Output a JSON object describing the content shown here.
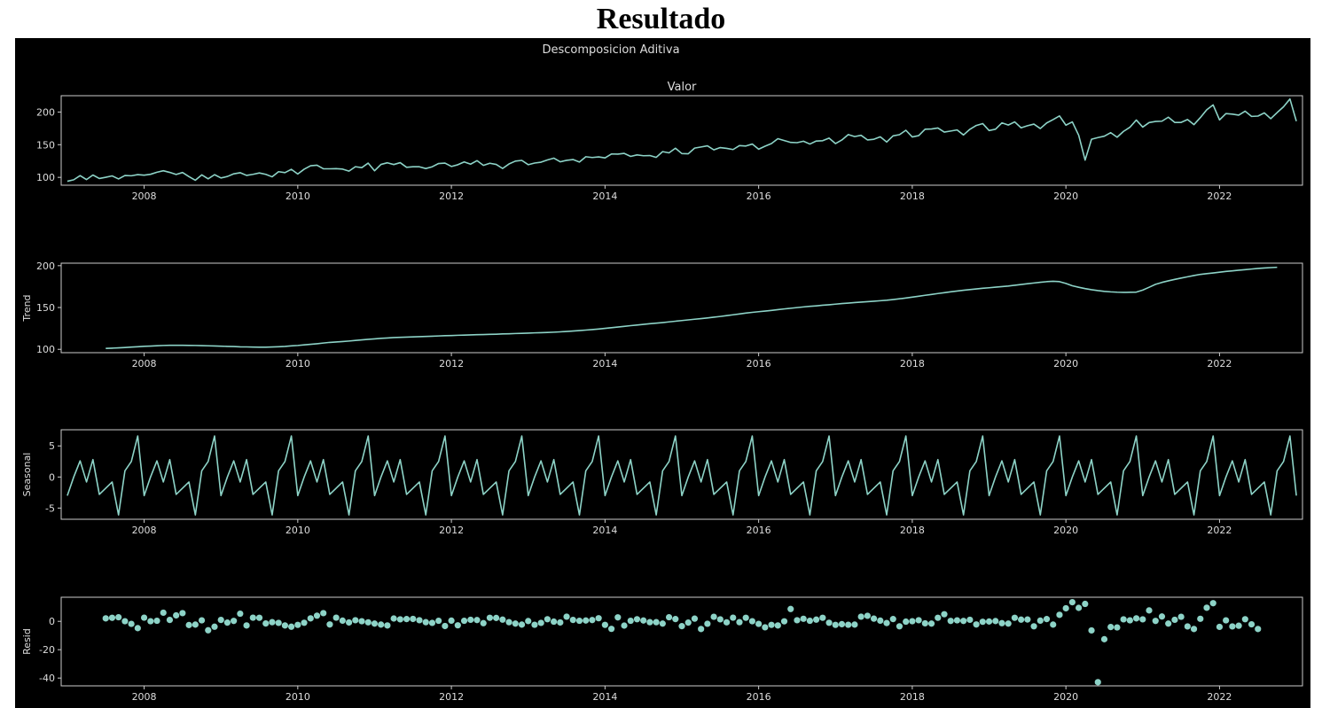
{
  "page": {
    "title": "Resultado"
  },
  "figure": {
    "suptitle": "Descomposicion Aditiva"
  },
  "colors": {
    "background": "#000000",
    "line": "#8dd3c7",
    "axes": "#cccccc",
    "text": "#dddddd"
  },
  "chart_data": [
    {
      "type": "line",
      "title": "Valor",
      "ylabel": "",
      "xlim": [
        2006.92,
        2023.08
      ],
      "ylim": [
        88,
        225
      ],
      "yticks": [
        100,
        150,
        200
      ],
      "xticks": [
        "2008",
        "2010",
        "2012",
        "2014",
        "2016",
        "2018",
        "2020",
        "2022"
      ],
      "x_start": "2007-01",
      "x_step_months": 1,
      "values": [
        94.0,
        96.3,
        102.7,
        96.6,
        103.6,
        98.3,
        100.1,
        102.2,
        97.6,
        102.9,
        102.4,
        104.2,
        103.3,
        104.7,
        107.8,
        110.1,
        107.6,
        104.4,
        107.4,
        101.2,
        95.6,
        103.8,
        97.8,
        104.1,
        99.1,
        101.3,
        105.4,
        107.1,
        103.0,
        104.6,
        106.7,
        104.6,
        100.8,
        108.7,
        107.2,
        112.3,
        105.1,
        112.5,
        117.8,
        118.6,
        113.2,
        113.1,
        113.3,
        112.6,
        109.5,
        116.3,
        114.9,
        121.8,
        110.1,
        119.8,
        122.3,
        119.6,
        122.5,
        115.4,
        116.2,
        116.2,
        113.5,
        116.2,
        121.2,
        121.8,
        116.7,
        119.3,
        123.6,
        120.2,
        125.6,
        118.4,
        121.6,
        119.8,
        113.6,
        120.5,
        124.9,
        126.0,
        119.4,
        121.9,
        123.2,
        126.6,
        129.4,
        123.8,
        126.1,
        127.3,
        123.5,
        131.6,
        130.4,
        131.3,
        129.8,
        135.8,
        135.6,
        136.7,
        132.1,
        134.4,
        133.1,
        133.4,
        130.6,
        139.4,
        137.5,
        144.6,
        136.4,
        136.1,
        144.8,
        146.5,
        148.3,
        142.1,
        145.6,
        144.4,
        142.6,
        148.6,
        148.0,
        151.0,
        143.1,
        147.7,
        151.8,
        159.2,
        156.3,
        153.5,
        153.1,
        155.3,
        151.0,
        155.6,
        156.1,
        160.1,
        151.7,
        157.2,
        165.5,
        162.4,
        164.4,
        157.3,
        158.3,
        162.1,
        154.1,
        163.5,
        165.3,
        172.1,
        161.8,
        163.9,
        173.7,
        174.0,
        175.6,
        169.3,
        170.9,
        172.6,
        164.9,
        173.6,
        179.4,
        182.3,
        171.7,
        173.7,
        183.4,
        180.1,
        184.9,
        175.8,
        179.0,
        181.5,
        174.7,
        183.3,
        188.5,
        194.1,
        179.9,
        184.9,
        164.4,
        126.4,
        158.4,
        160.9,
        163.0,
        168.4,
        161.4,
        170.4,
        176.7,
        187.8,
        176.9,
        183.9,
        185.6,
        186.0,
        192.1,
        184.1,
        184.1,
        188.5,
        180.7,
        191.5,
        203.4,
        210.9,
        188.0,
        197.6,
        196.8,
        195.3,
        201.3,
        193.3,
        193.8,
        198.7,
        189.8,
        199.2,
        208.0,
        220.0,
        186.0
      ]
    },
    {
      "type": "line",
      "title": "",
      "ylabel": "Trend",
      "xlim": [
        2006.92,
        2023.08
      ],
      "ylim": [
        96,
        203
      ],
      "yticks": [
        100,
        150,
        200
      ],
      "xticks": [
        "2008",
        "2010",
        "2012",
        "2014",
        "2016",
        "2018",
        "2020",
        "2022"
      ],
      "x_start": "2007-07",
      "x_step_months": 1,
      "values": [
        101.1,
        101.4,
        101.8,
        102.2,
        102.7,
        103.1,
        103.6,
        103.9,
        104.3,
        104.6,
        104.8,
        104.8,
        104.8,
        104.7,
        104.6,
        104.4,
        104.2,
        104.0,
        103.8,
        103.5,
        103.3,
        103.0,
        102.9,
        102.7,
        102.6,
        102.6,
        102.8,
        103.1,
        103.5,
        104.1,
        104.6,
        105.3,
        106.0,
        106.7,
        107.5,
        108.3,
        108.8,
        109.3,
        109.9,
        110.6,
        111.3,
        112.0,
        112.5,
        113.1,
        113.6,
        114.1,
        114.3,
        114.6,
        114.9,
        115.1,
        115.4,
        115.7,
        116.0,
        116.3,
        116.5,
        116.8,
        117.0,
        117.3,
        117.5,
        117.7,
        117.9,
        118.1,
        118.4,
        118.6,
        118.9,
        119.1,
        119.4,
        119.7,
        119.9,
        120.2,
        120.5,
        120.9,
        121.4,
        121.9,
        122.4,
        123.0,
        123.6,
        124.3,
        125.1,
        125.9,
        126.7,
        127.5,
        128.3,
        129.0,
        129.8,
        130.6,
        131.3,
        132.0,
        132.8,
        133.6,
        134.4,
        135.2,
        136.0,
        136.7,
        137.5,
        138.4,
        139.3,
        140.3,
        141.3,
        142.3,
        143.3,
        144.2,
        145.0,
        145.7,
        146.5,
        147.4,
        148.3,
        149.1,
        149.9,
        150.7,
        151.4,
        152.0,
        152.7,
        153.3,
        154.0,
        154.7,
        155.3,
        155.9,
        156.5,
        157.0,
        157.5,
        158.1,
        158.7,
        159.5,
        160.4,
        161.4,
        162.4,
        163.5,
        164.6,
        165.6,
        166.7,
        167.7,
        168.8,
        169.7,
        170.6,
        171.4,
        172.2,
        173.0,
        173.6,
        174.3,
        175.0,
        175.7,
        176.6,
        177.5,
        178.4,
        179.3,
        180.2,
        180.9,
        181.3,
        180.9,
        178.8,
        176.0,
        174.2,
        172.6,
        171.3,
        170.2,
        169.3,
        168.7,
        168.3,
        168.1,
        168.2,
        168.4,
        170.8,
        174.2,
        177.7,
        180.0,
        181.9,
        183.6,
        185.2,
        186.7,
        188.2,
        189.6,
        190.5,
        191.3,
        192.2,
        193.1,
        193.8,
        194.6,
        195.3,
        196.0,
        196.7,
        197.2,
        197.7,
        198.1
      ]
    },
    {
      "type": "line",
      "title": "",
      "ylabel": "Seasonal",
      "xlim": [
        2006.92,
        2023.08
      ],
      "ylim": [
        -6.8,
        7.6
      ],
      "yticks": [
        -5,
        0,
        5
      ],
      "xticks": [
        "2008",
        "2010",
        "2012",
        "2014",
        "2016",
        "2018",
        "2020",
        "2022"
      ],
      "x_start": "2007-01",
      "x_step_months": 1,
      "seasonal_cycle": [
        -3.0,
        0.0,
        2.6,
        -0.8,
        2.8,
        -2.8,
        -1.8,
        -0.8,
        -6.1,
        1.0,
        2.5,
        6.6
      ],
      "periods": 16,
      "end_value": -3.0
    },
    {
      "type": "scatter",
      "title": "",
      "ylabel": "Resid",
      "xlim": [
        2006.92,
        2023.08
      ],
      "ylim": [
        -45.5,
        17
      ],
      "yticks": [
        -40,
        -20,
        0
      ],
      "xticks": [
        "2008",
        "2010",
        "2012",
        "2014",
        "2016",
        "2018",
        "2020",
        "2022"
      ],
      "x_start": "2007-07",
      "x_step_months": 1,
      "values": [
        2.1,
        2.5,
        2.9,
        0.1,
        -1.8,
        -4.8,
        2.6,
        0.1,
        0.4,
        6.1,
        1.0,
        4.2,
        5.8,
        -2.6,
        -2.3,
        0.7,
        -6.3,
        -3.8,
        1.0,
        -0.9,
        0.3,
        5.4,
        -2.9,
        2.6,
        2.5,
        -1.5,
        -0.6,
        -1.1,
        -2.9,
        -3.8,
        -2.5,
        -1.0,
        2.1,
        4.0,
        5.8,
        -2.2,
        2.6,
        0.5,
        -0.8,
        0.8,
        0.1,
        -0.7,
        -1.6,
        -2.3,
        -2.9,
        2.0,
        1.4,
        1.6,
        1.7,
        0.8,
        -0.6,
        -1.1,
        0.4,
        -3.3,
        0.5,
        -2.8,
        0.4,
        1.1,
        0.9,
        -1.3,
        2.5,
        2.4,
        1.2,
        -0.6,
        -1.6,
        -2.3,
        0.2,
        -2.4,
        -1.1,
        1.5,
        -0.2,
        -0.8,
        3.3,
        1.0,
        0.4,
        0.6,
        0.9,
        2.2,
        -2.5,
        -5.3,
        2.8,
        -3.0,
        0.4,
        1.5,
        0.6,
        -0.6,
        -0.6,
        -1.6,
        2.9,
        1.6,
        -3.4,
        -0.9,
        1.9,
        -5.4,
        -1.7,
        3.2,
        1.4,
        -0.7,
        2.6,
        -0.6,
        2.5,
        0.1,
        -1.8,
        -4.2,
        -2.5,
        -2.9,
        0.0,
        8.7,
        0.8,
        1.8,
        0.4,
        1.2,
        2.5,
        -1.0,
        -2.5,
        -2.0,
        -2.4,
        -2.3,
        3.3,
        3.9,
        1.9,
        0.5,
        -1.2,
        1.6,
        -3.5,
        -0.2,
        0.1,
        0.8,
        -1.4,
        -1.6,
        2.5,
        5.0,
        0.3,
        0.7,
        0.3,
        1.1,
        -2.2,
        -0.3,
        -0.1,
        0.2,
        -1.3,
        -1.6,
        2.5,
        1.2,
        1.3,
        -3.5,
        0.5,
        1.6,
        -2.3,
        4.6,
        9.2,
        13.5,
        9.5,
        12.3,
        -6.4,
        -42.9,
        -12.6,
        -4.0,
        -4.3,
        1.4,
        0.7,
        2.1,
        1.4,
        7.7,
        0.3,
        3.4,
        -1.6,
        1.1,
        3.2,
        -3.6,
        -5.4,
        1.8,
        9.6,
        12.8,
        -3.9,
        0.7,
        -3.6,
        -3.1,
        1.5,
        -2.1,
        -5.4
      ]
    }
  ]
}
